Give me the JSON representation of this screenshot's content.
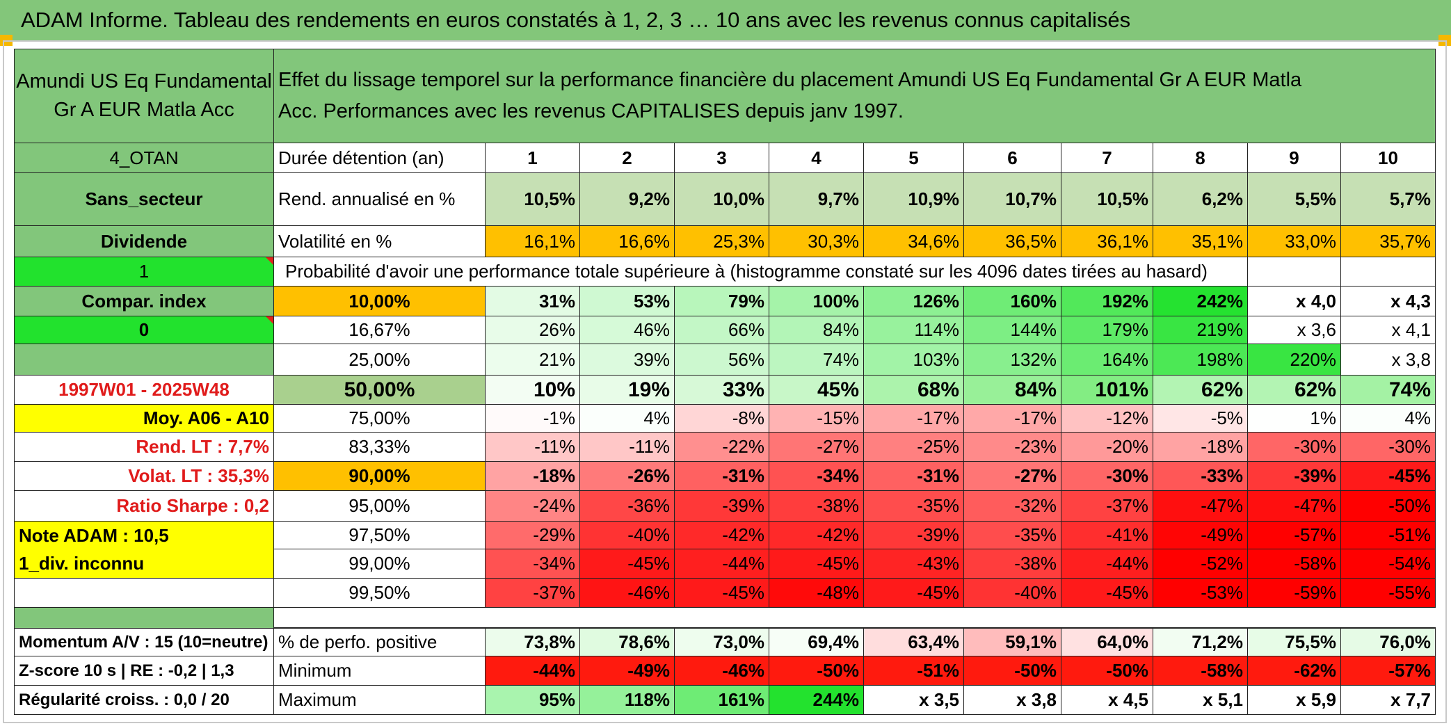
{
  "title": "ADAM Informe. Tableau des rendements en euros constatés à 1, 2, 3 … 10 ans avec les revenus connus capitalisés",
  "fund_name": "Amundi US Eq Fundamental Gr A EUR Matla Acc",
  "header_text": "Effet du lissage temporel sur la performance financière du placement Amundi US Eq Fundamental Gr A EUR Matla Acc. Performances avec les revenus CAPITALISES depuis janv 1997.",
  "left_labels": {
    "tag1": "4_OTAN",
    "sector": "Sans_secteur",
    "dividende": "Dividende",
    "one": "1",
    "compar_index": "Compar. index",
    "zero": "0",
    "period": "1997W01 - 2025W48",
    "moy": "Moy. A06 - A10",
    "rend_lt": "Rend. LT :   7,7%",
    "volat_lt": "Volat. LT :   35,3%",
    "sharpe": "Ratio Sharpe :   0,2",
    "note": "Note ADAM : 10,5",
    "div_inconnu": "1_div. inconnu",
    "momentum": "Momentum A/V : 15 (10=neutre)",
    "zscore": "Z-score 10 s | RE : -0,2 | 1,3",
    "regularite": "Régularité croiss. : 0,0 / 20"
  },
  "row_labels": {
    "duree": "Durée détention (an)",
    "rend": "Rend. annualisé en %",
    "volat": "Volatilité en %",
    "proba": "Probabilité d'avoir une performance totale supérieure à (histogramme constaté sur les 4096 dates tirées au hasard)",
    "perfo_pos": "% de perfo. positive",
    "minimum": "Minimum",
    "maximum": "Maximum"
  },
  "years": [
    "1",
    "2",
    "3",
    "4",
    "5",
    "6",
    "7",
    "8",
    "9",
    "10"
  ],
  "rend": [
    "10,5%",
    "9,2%",
    "10,0%",
    "9,7%",
    "10,9%",
    "10,7%",
    "10,5%",
    "6,2%",
    "5,5%",
    "5,7%"
  ],
  "volat": [
    "16,1%",
    "16,6%",
    "25,3%",
    "30,3%",
    "34,6%",
    "36,5%",
    "36,1%",
    "35,1%",
    "33,0%",
    "35,7%"
  ],
  "percentile_rows": [
    {
      "pct": "10,00%",
      "values": [
        "31%",
        "53%",
        "79%",
        "100%",
        "126%",
        "160%",
        "192%",
        "242%",
        "x 4,0",
        "x 4,3"
      ]
    },
    {
      "pct": "16,67%",
      "values": [
        "26%",
        "46%",
        "66%",
        "84%",
        "114%",
        "144%",
        "179%",
        "219%",
        "x 3,6",
        "x 4,1"
      ]
    },
    {
      "pct": "25,00%",
      "values": [
        "21%",
        "39%",
        "56%",
        "74%",
        "103%",
        "132%",
        "164%",
        "198%",
        "220%",
        "x 3,8"
      ]
    },
    {
      "pct": "50,00%",
      "values": [
        "10%",
        "19%",
        "33%",
        "45%",
        "68%",
        "84%",
        "101%",
        "62%",
        "62%",
        "74%"
      ]
    },
    {
      "pct": "75,00%",
      "values": [
        "-1%",
        "4%",
        "-8%",
        "-15%",
        "-17%",
        "-17%",
        "-12%",
        "-5%",
        "1%",
        "4%"
      ]
    },
    {
      "pct": "83,33%",
      "values": [
        "-11%",
        "-11%",
        "-22%",
        "-27%",
        "-25%",
        "-23%",
        "-20%",
        "-18%",
        "-30%",
        "-30%"
      ]
    },
    {
      "pct": "90,00%",
      "values": [
        "-18%",
        "-26%",
        "-31%",
        "-34%",
        "-31%",
        "-27%",
        "-30%",
        "-33%",
        "-39%",
        "-45%"
      ]
    },
    {
      "pct": "95,00%",
      "values": [
        "-24%",
        "-36%",
        "-39%",
        "-38%",
        "-35%",
        "-32%",
        "-37%",
        "-47%",
        "-47%",
        "-50%"
      ]
    },
    {
      "pct": "97,50%",
      "values": [
        "-29%",
        "-40%",
        "-42%",
        "-42%",
        "-39%",
        "-35%",
        "-41%",
        "-49%",
        "-57%",
        "-51%"
      ]
    },
    {
      "pct": "99,00%",
      "values": [
        "-34%",
        "-45%",
        "-44%",
        "-45%",
        "-43%",
        "-38%",
        "-44%",
        "-52%",
        "-58%",
        "-54%"
      ]
    },
    {
      "pct": "99,50%",
      "values": [
        "-37%",
        "-46%",
        "-45%",
        "-48%",
        "-45%",
        "-40%",
        "-45%",
        "-53%",
        "-59%",
        "-55%"
      ]
    }
  ],
  "perfo_pos": [
    "73,8%",
    "78,6%",
    "73,0%",
    "69,4%",
    "63,4%",
    "59,1%",
    "64,0%",
    "71,2%",
    "75,5%",
    "76,0%"
  ],
  "minimum": [
    "-44%",
    "-49%",
    "-46%",
    "-50%",
    "-51%",
    "-50%",
    "-50%",
    "-58%",
    "-62%",
    "-57%"
  ],
  "maximum": [
    "95%",
    "118%",
    "161%",
    "244%",
    "x 3,5",
    "x 3,8",
    "x 4,5",
    "x 5,1",
    "x 5,9",
    "x 7,7"
  ],
  "colors": {
    "header_green": "#83c67a",
    "label_green": "#82c67b",
    "bright_green": "#22e22d",
    "yellow": "#ffff00",
    "orange": "#ffc000",
    "light_sage": "#c6e0b4",
    "median_sage": "#a9d08e",
    "red_text": "#e01b1b"
  }
}
